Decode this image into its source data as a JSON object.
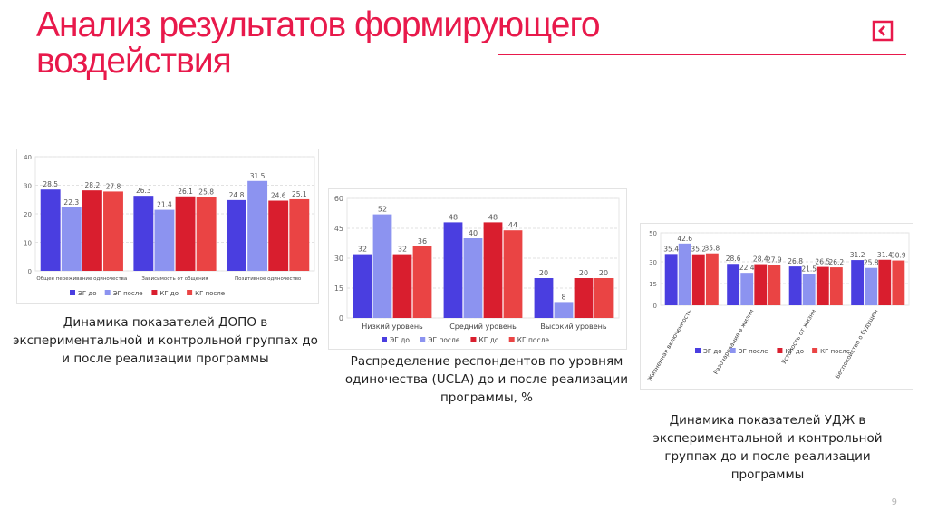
{
  "slide": {
    "title": "Анализ результатов формирующего воздействия",
    "page_number": "9",
    "accent_color": "#e8194b"
  },
  "charts": [
    {
      "caption": "Динамика показателей ДОПО в экспериментальной и контрольной группах до и после реализации программы"
    },
    {
      "caption": "Распределение респондентов по уровням одиночества (UCLA) до и после реализации программы, %"
    },
    {
      "caption": "Динамика показателей УДЖ в экспериментальной и контрольной группах до и после реализации программы"
    }
  ],
  "chart_data": [
    {
      "type": "bar",
      "categories": [
        "Общее переживание одиночества",
        "Зависимость от общения",
        "Позитивное одиночество"
      ],
      "series": [
        {
          "name": "ЭГ до",
          "values": [
            28.5,
            26.3,
            24.8
          ],
          "color": "#4a3ee0"
        },
        {
          "name": "ЭГ после",
          "values": [
            22.3,
            21.4,
            31.5
          ],
          "color": "#8c93f0"
        },
        {
          "name": "КГ до",
          "values": [
            28.2,
            26.1,
            24.6
          ],
          "color": "#d91e2e"
        },
        {
          "name": "КГ после",
          "values": [
            27.8,
            25.8,
            25.1
          ],
          "color": "#ea4444"
        }
      ],
      "ylim": [
        0,
        40
      ],
      "yticks": [
        0,
        10,
        20,
        30,
        40
      ],
      "legend": "bottom",
      "grid": true
    },
    {
      "type": "bar",
      "categories": [
        "Низкий уровень",
        "Средний уровень",
        "Высокий уровень"
      ],
      "series": [
        {
          "name": "ЭГ до",
          "values": [
            32,
            48,
            20
          ],
          "color": "#4a3ee0"
        },
        {
          "name": "ЭГ после",
          "values": [
            52,
            40,
            8
          ],
          "color": "#8c93f0"
        },
        {
          "name": "КГ до",
          "values": [
            32,
            48,
            20
          ],
          "color": "#d91e2e"
        },
        {
          "name": "КГ после",
          "values": [
            36,
            44,
            20
          ],
          "color": "#ea4444"
        }
      ],
      "ylim": [
        0,
        60
      ],
      "yticks": [
        0,
        15,
        30,
        45,
        60
      ],
      "legend": "bottom",
      "grid": true
    },
    {
      "type": "bar",
      "categories": [
        "Жизненная включенность",
        "Разочарование в жизни",
        "Усталость от жизни",
        "Беспокойство о будущем"
      ],
      "series": [
        {
          "name": "ЭГ до",
          "values": [
            35.4,
            28.6,
            26.8,
            31.2
          ],
          "color": "#4a3ee0"
        },
        {
          "name": "ЭГ после",
          "values": [
            42.6,
            22.4,
            21.5,
            25.8
          ],
          "color": "#8c93f0"
        },
        {
          "name": "КГ до",
          "values": [
            35.2,
            28.4,
            26.5,
            31.4
          ],
          "color": "#d91e2e"
        },
        {
          "name": "КГ после",
          "values": [
            35.8,
            27.9,
            26.2,
            30.9
          ],
          "color": "#ea4444"
        }
      ],
      "ylim": [
        0,
        50
      ],
      "yticks": [
        0,
        15,
        30,
        50
      ],
      "legend": "bottom",
      "grid": true
    }
  ]
}
